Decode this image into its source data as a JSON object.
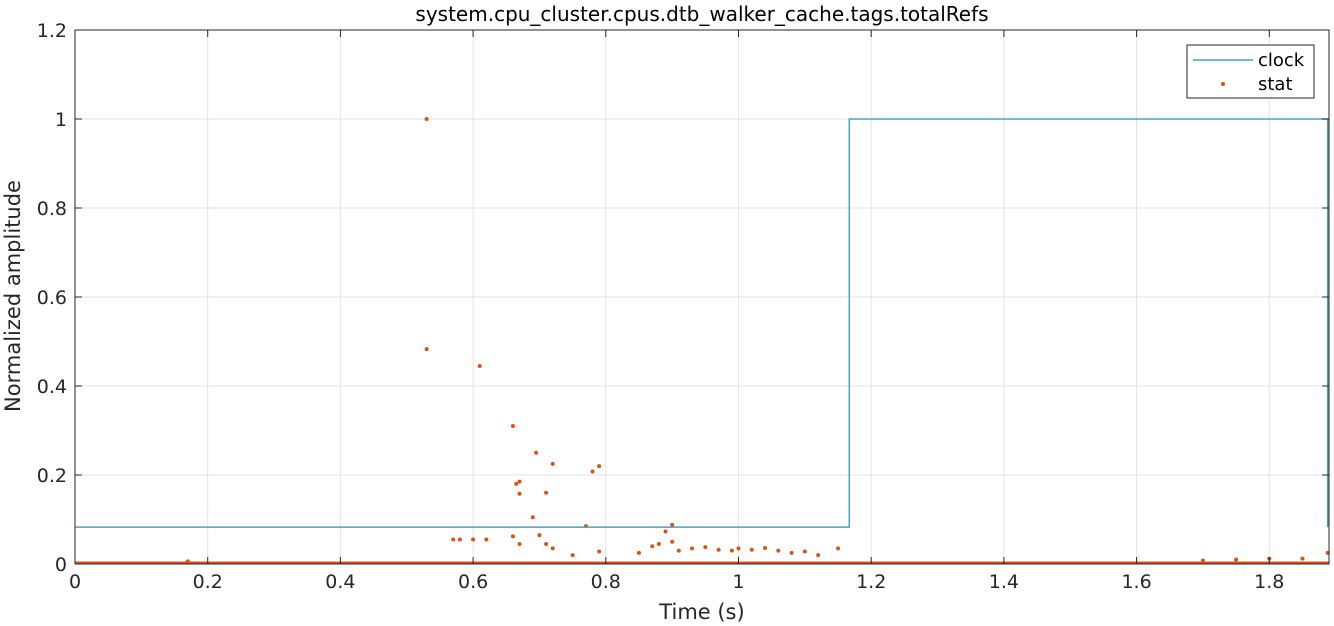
{
  "chart_data": {
    "type": "line",
    "title": "system.cpu_cluster.cpus.dtb_walker_cache.tags.totalRefs",
    "xlabel": "Time (s)",
    "ylabel": "Normalized amplitude",
    "xlim": [
      0,
      1.89
    ],
    "ylim": [
      0,
      1.2
    ],
    "grid": true,
    "legend_position": "top-right",
    "x_ticks": [
      0,
      0.2,
      0.4,
      0.6,
      0.8,
      1,
      1.2,
      1.4,
      1.6,
      1.8
    ],
    "x_tick_labels": [
      "0",
      "0.2",
      "0.4",
      "0.6",
      "0.8",
      "1",
      "1.2",
      "1.4",
      "1.6",
      "1.8"
    ],
    "y_ticks": [
      0,
      0.2,
      0.4,
      0.6,
      0.8,
      1,
      1.2
    ],
    "y_tick_labels": [
      "0",
      "0.2",
      "0.4",
      "0.6",
      "0.8",
      "1",
      "1.2"
    ],
    "series": [
      {
        "name": "clock",
        "style": "step-line",
        "color": "#4aa0c8",
        "x": [
          0,
          1.167,
          1.167,
          1.888,
          1.888
        ],
        "y": [
          0.083,
          0.083,
          1.0,
          1.0,
          0.083
        ]
      },
      {
        "name": "stat",
        "style": "markers",
        "color": "#d95319",
        "x": [
          0.53,
          0.53,
          0.61,
          0.66,
          0.665,
          0.67,
          0.67,
          0.695,
          0.71,
          0.72,
          0.69,
          0.78,
          0.79,
          0.77,
          0.9,
          0.89,
          0.57,
          0.58,
          0.6,
          0.62,
          0.66,
          0.67,
          0.7,
          0.71,
          0.72,
          0.75,
          0.79,
          0.85,
          0.87,
          0.88,
          0.9,
          0.91,
          0.93,
          0.95,
          0.97,
          0.99,
          1.0,
          1.02,
          1.04,
          1.06,
          1.08,
          1.1,
          1.12,
          1.15,
          0.17,
          1.7,
          1.75,
          1.8,
          1.85,
          1.888
        ],
        "y": [
          1.0,
          0.483,
          0.445,
          0.31,
          0.18,
          0.185,
          0.158,
          0.25,
          0.16,
          0.225,
          0.105,
          0.208,
          0.22,
          0.085,
          0.088,
          0.073,
          0.055,
          0.055,
          0.055,
          0.055,
          0.062,
          0.045,
          0.065,
          0.045,
          0.035,
          0.02,
          0.028,
          0.025,
          0.04,
          0.045,
          0.05,
          0.03,
          0.035,
          0.038,
          0.032,
          0.03,
          0.035,
          0.032,
          0.036,
          0.03,
          0.025,
          0.028,
          0.02,
          0.035,
          0.006,
          0.008,
          0.01,
          0.012,
          0.012,
          0.025
        ]
      }
    ]
  }
}
